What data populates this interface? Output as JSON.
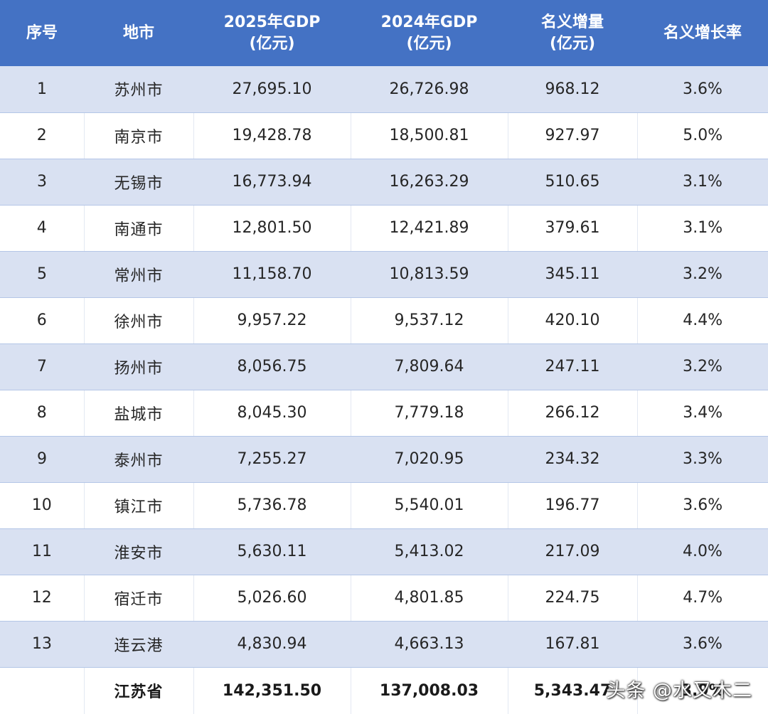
{
  "headers": [
    {
      "lines": [
        "序号"
      ]
    },
    {
      "lines": [
        "地市"
      ]
    },
    {
      "lines": [
        "2025年GDP",
        "(亿元)"
      ]
    },
    {
      "lines": [
        "2024年GDP",
        "(亿元)"
      ]
    },
    {
      "lines": [
        "名义增量",
        "(亿元)"
      ]
    },
    {
      "lines": [
        "名义增长率"
      ]
    }
  ],
  "rows": [
    [
      "1",
      "苏州市",
      "27,695.10",
      "26,726.98",
      "968.12",
      "3.6%"
    ],
    [
      "2",
      "南京市",
      "19,428.78",
      "18,500.81",
      "927.97",
      "5.0%"
    ],
    [
      "3",
      "无锡市",
      "16,773.94",
      "16,263.29",
      "510.65",
      "3.1%"
    ],
    [
      "4",
      "南通市",
      "12,801.50",
      "12,421.89",
      "379.61",
      "3.1%"
    ],
    [
      "5",
      "常州市",
      "11,158.70",
      "10,813.59",
      "345.11",
      "3.2%"
    ],
    [
      "6",
      "徐州市",
      "9,957.22",
      "9,537.12",
      "420.10",
      "4.4%"
    ],
    [
      "7",
      "扬州市",
      "8,056.75",
      "7,809.64",
      "247.11",
      "3.2%"
    ],
    [
      "8",
      "盐城市",
      "8,045.30",
      "7,779.18",
      "266.12",
      "3.4%"
    ],
    [
      "9",
      "泰州市",
      "7,255.27",
      "7,020.95",
      "234.32",
      "3.3%"
    ],
    [
      "10",
      "镇江市",
      "5,736.78",
      "5,540.01",
      "196.77",
      "3.6%"
    ],
    [
      "11",
      "淮安市",
      "5,630.11",
      "5,413.02",
      "217.09",
      "4.0%"
    ],
    [
      "12",
      "宿迁市",
      "5,026.60",
      "4,801.85",
      "224.75",
      "4.7%"
    ],
    [
      "13",
      "连云港",
      "4,830.94",
      "4,663.13",
      "167.81",
      "3.6%"
    ]
  ],
  "total": [
    "",
    "江苏省",
    "142,351.50",
    "137,008.03",
    "5,343.47",
    "3.9%"
  ],
  "watermark": "头条 @水又木二",
  "colors": {
    "header_bg": "#4472c4",
    "band": "#d9e1f2",
    "text": "#262626"
  }
}
